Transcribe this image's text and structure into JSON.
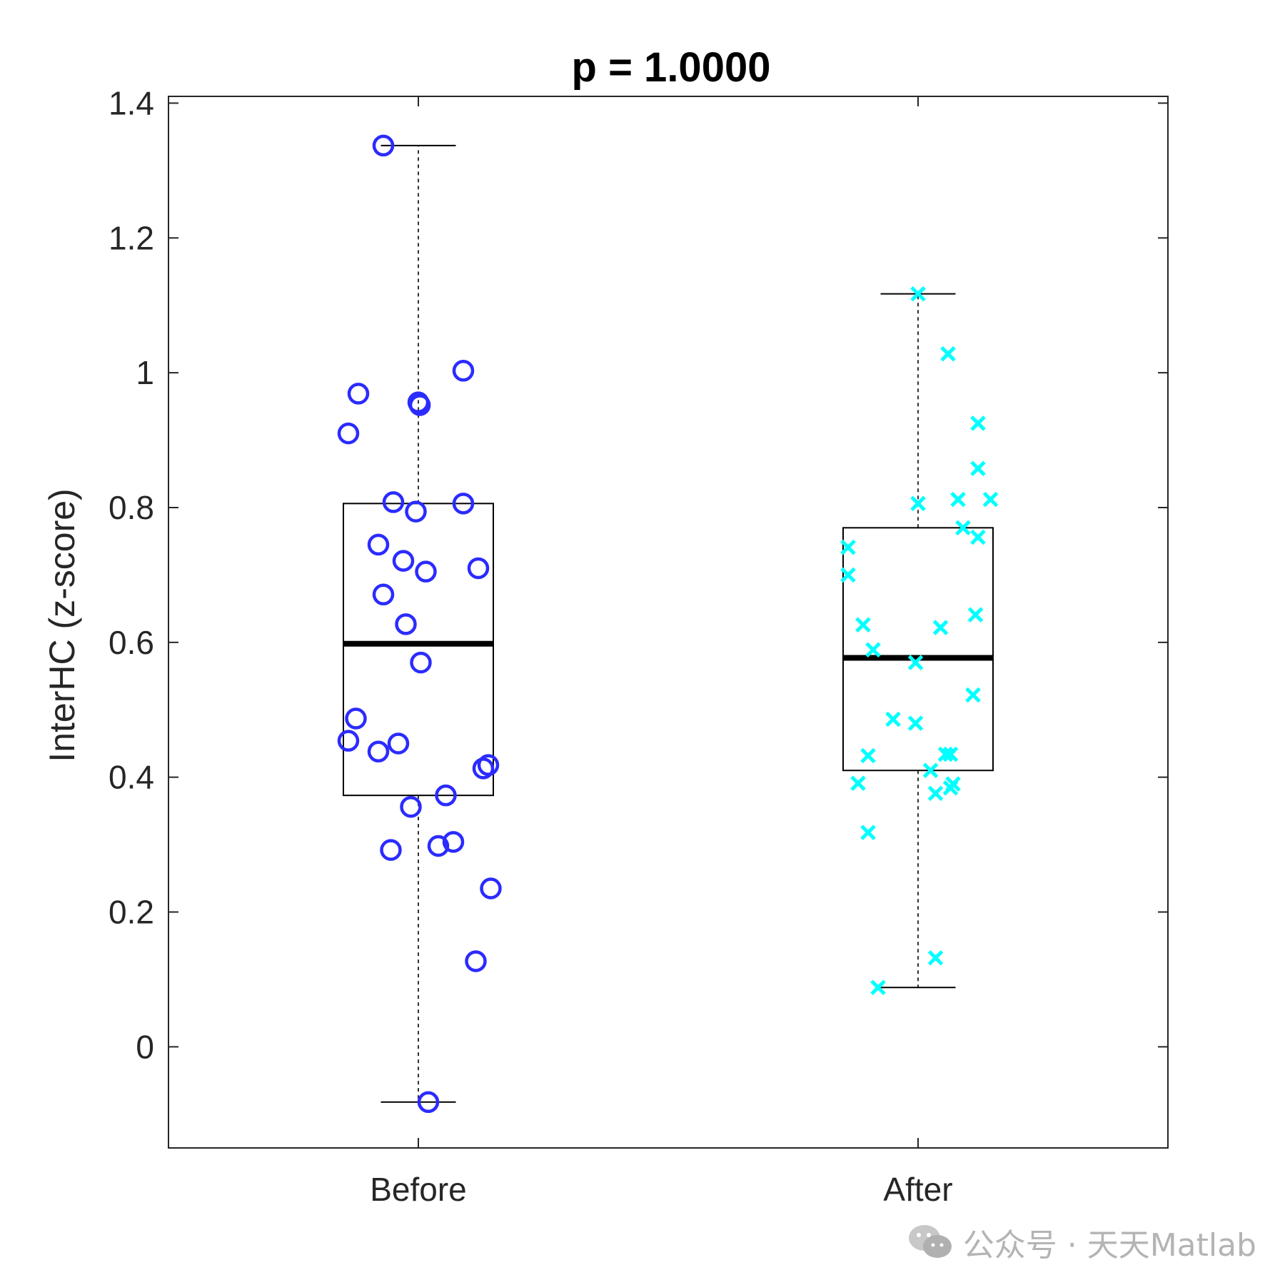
{
  "chart_data": {
    "type": "box",
    "title": "p = 1.0000",
    "ylabel": "InterHC (z-score)",
    "categories": [
      "Before",
      "After"
    ],
    "ylim": [
      -0.15,
      1.41
    ],
    "yticks": [
      0,
      0.2,
      0.4,
      0.6,
      0.8,
      1,
      1.2,
      1.4
    ],
    "ytick_labels": [
      "0",
      "0.2",
      "0.4",
      "0.6",
      "0.8",
      "1",
      "1.2",
      "1.4"
    ],
    "grid": false,
    "boxes": [
      {
        "category": "Before",
        "q1": 0.373,
        "median": 0.598,
        "q3": 0.806,
        "whisker_low": -0.082,
        "whisker_high": 1.337
      },
      {
        "category": "After",
        "q1": 0.41,
        "median": 0.577,
        "q3": 0.77,
        "whisker_low": 0.088,
        "whisker_high": 1.117
      }
    ],
    "series": [
      {
        "category": "Before",
        "marker": "circle",
        "color": "#2b2bff",
        "points": [
          {
            "x": -0.07,
            "y": 1.337
          },
          {
            "x": 0.09,
            "y": 1.003
          },
          {
            "x": -0.12,
            "y": 0.969
          },
          {
            "x": 0.0,
            "y": 0.956
          },
          {
            "x": 0.003,
            "y": 0.952
          },
          {
            "x": -0.14,
            "y": 0.91
          },
          {
            "x": -0.05,
            "y": 0.808
          },
          {
            "x": 0.09,
            "y": 0.806
          },
          {
            "x": -0.005,
            "y": 0.794
          },
          {
            "x": -0.08,
            "y": 0.745
          },
          {
            "x": -0.03,
            "y": 0.721
          },
          {
            "x": 0.12,
            "y": 0.71
          },
          {
            "x": 0.015,
            "y": 0.705
          },
          {
            "x": -0.07,
            "y": 0.671
          },
          {
            "x": -0.025,
            "y": 0.627
          },
          {
            "x": 0.005,
            "y": 0.57
          },
          {
            "x": -0.125,
            "y": 0.487
          },
          {
            "x": -0.14,
            "y": 0.454
          },
          {
            "x": -0.04,
            "y": 0.45
          },
          {
            "x": -0.08,
            "y": 0.438
          },
          {
            "x": 0.14,
            "y": 0.418
          },
          {
            "x": 0.13,
            "y": 0.413
          },
          {
            "x": 0.055,
            "y": 0.373
          },
          {
            "x": -0.015,
            "y": 0.356
          },
          {
            "x": 0.07,
            "y": 0.304
          },
          {
            "x": 0.04,
            "y": 0.298
          },
          {
            "x": -0.055,
            "y": 0.292
          },
          {
            "x": 0.145,
            "y": 0.235
          },
          {
            "x": 0.115,
            "y": 0.127
          },
          {
            "x": 0.02,
            "y": -0.082
          }
        ]
      },
      {
        "category": "After",
        "marker": "x",
        "color": "#00ffff",
        "points": [
          {
            "x": 1.0,
            "y": 1.117
          },
          {
            "x": 1.06,
            "y": 1.028
          },
          {
            "x": 1.12,
            "y": 0.925
          },
          {
            "x": 1.12,
            "y": 0.858
          },
          {
            "x": 1.08,
            "y": 0.812
          },
          {
            "x": 1.145,
            "y": 0.812
          },
          {
            "x": 1.0,
            "y": 0.806
          },
          {
            "x": 1.09,
            "y": 0.77
          },
          {
            "x": 1.12,
            "y": 0.756
          },
          {
            "x": 0.86,
            "y": 0.741
          },
          {
            "x": 0.86,
            "y": 0.7
          },
          {
            "x": 1.115,
            "y": 0.641
          },
          {
            "x": 0.89,
            "y": 0.626
          },
          {
            "x": 1.045,
            "y": 0.622
          },
          {
            "x": 0.91,
            "y": 0.589
          },
          {
            "x": 0.995,
            "y": 0.57
          },
          {
            "x": 1.11,
            "y": 0.522
          },
          {
            "x": 0.95,
            "y": 0.486
          },
          {
            "x": 0.995,
            "y": 0.48
          },
          {
            "x": 1.055,
            "y": 0.434
          },
          {
            "x": 1.065,
            "y": 0.434
          },
          {
            "x": 0.9,
            "y": 0.432
          },
          {
            "x": 1.025,
            "y": 0.41
          },
          {
            "x": 0.88,
            "y": 0.391
          },
          {
            "x": 1.07,
            "y": 0.39
          },
          {
            "x": 1.065,
            "y": 0.384
          },
          {
            "x": 1.035,
            "y": 0.376
          },
          {
            "x": 0.9,
            "y": 0.318
          },
          {
            "x": 1.035,
            "y": 0.132
          },
          {
            "x": 0.92,
            "y": 0.088
          }
        ]
      }
    ]
  },
  "watermark": {
    "text": "公众号 · 天天Matlab"
  }
}
